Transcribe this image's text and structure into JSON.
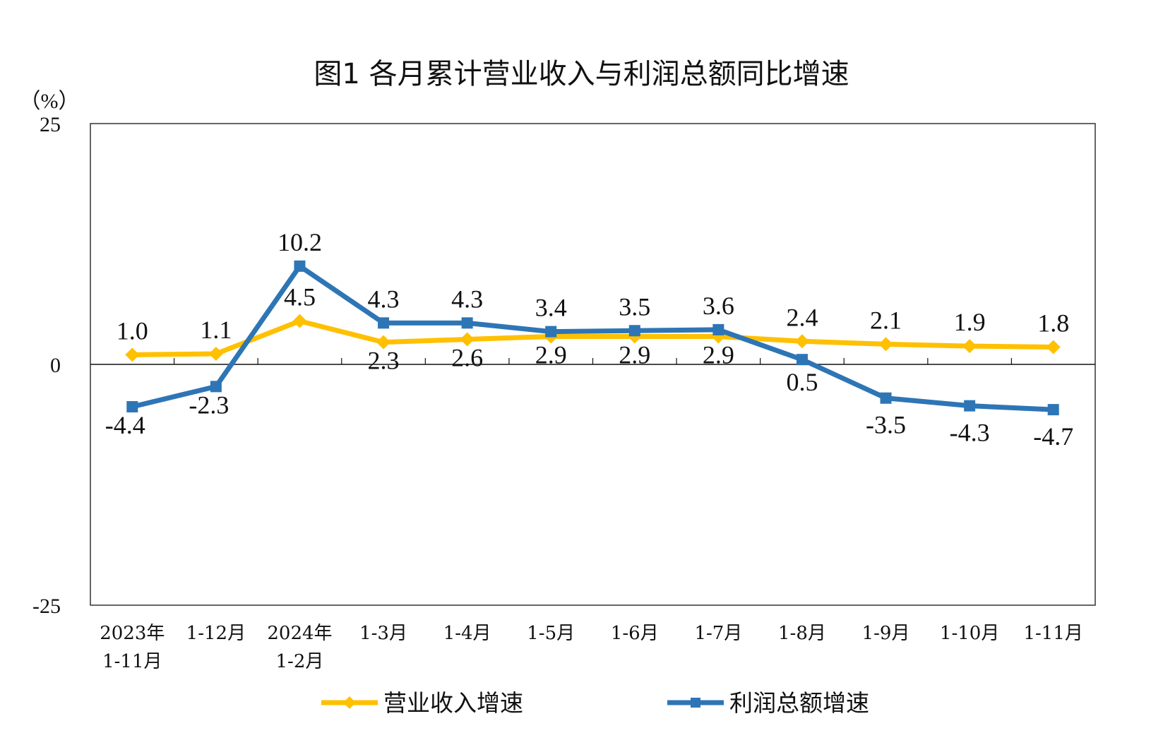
{
  "chart_data": {
    "type": "line",
    "title": "图1  各月累计营业收入与利润总额同比增速",
    "ylabel": "（%）",
    "ylim": [
      -25,
      25
    ],
    "yticks": [
      "25",
      "0",
      "-25"
    ],
    "grid": false,
    "legend": "bottom",
    "categories": [
      [
        "2023年",
        "1-11月"
      ],
      [
        "1-12月"
      ],
      [
        "2024年",
        "1-2月"
      ],
      [
        "1-3月"
      ],
      [
        "1-4月"
      ],
      [
        "1-5月"
      ],
      [
        "1-6月"
      ],
      [
        "1-7月"
      ],
      [
        "1-8月"
      ],
      [
        "1-9月"
      ],
      [
        "1-10月"
      ],
      [
        "1-11月"
      ]
    ],
    "series": [
      {
        "name": "营业收入增速",
        "color": "#FFC000",
        "marker": "diamond",
        "values": [
          1.0,
          1.1,
          4.5,
          2.3,
          2.6,
          2.9,
          2.9,
          2.9,
          2.4,
          2.1,
          1.9,
          1.8
        ]
      },
      {
        "name": "利润总额增速",
        "color": "#2E75B6",
        "marker": "square",
        "values": [
          -4.4,
          -2.3,
          10.2,
          4.3,
          4.3,
          3.4,
          3.5,
          3.6,
          0.5,
          -3.5,
          -4.3,
          -4.7
        ]
      }
    ]
  }
}
